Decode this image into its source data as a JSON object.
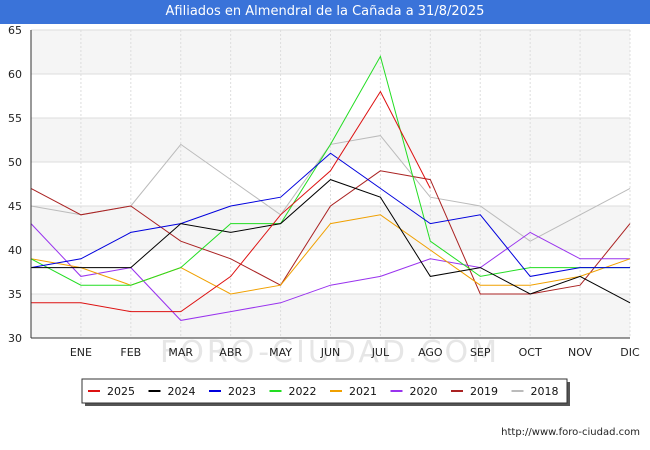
{
  "header": {
    "title": "Afiliados en Almendral de la Cañada a 31/8/2025"
  },
  "source_label": "http://www.foro-ciudad.com",
  "watermark": "FORO-CIUDAD.COM",
  "chart_data": {
    "type": "line",
    "title": "Afiliados en Almendral de la Cañada a 31/8/2025",
    "categories": [
      "",
      "ENE",
      "FEB",
      "MAR",
      "ABR",
      "MAY",
      "JUN",
      "JUL",
      "AGO",
      "SEP",
      "OCT",
      "NOV",
      "DIC"
    ],
    "ylim": [
      30,
      65
    ],
    "yticks": [
      30,
      35,
      40,
      45,
      50,
      55,
      60,
      65
    ],
    "grid": true,
    "legend_position": "bottom",
    "series": [
      {
        "name": "2025",
        "color": "#dd1111",
        "values": [
          34,
          34,
          33,
          33,
          37,
          44,
          49,
          58,
          47,
          null,
          null,
          null,
          null
        ]
      },
      {
        "name": "2024",
        "color": "#000000",
        "values": [
          38,
          38,
          38,
          43,
          42,
          43,
          48,
          46,
          37,
          38,
          35,
          37,
          34
        ]
      },
      {
        "name": "2023",
        "color": "#0000dd",
        "values": [
          38,
          39,
          42,
          43,
          45,
          46,
          51,
          47,
          43,
          44,
          37,
          38,
          38
        ]
      },
      {
        "name": "2022",
        "color": "#22dd22",
        "values": [
          39,
          36,
          36,
          38,
          43,
          43,
          52,
          62,
          41,
          37,
          38,
          38,
          38
        ]
      },
      {
        "name": "2021",
        "color": "#f0a000",
        "values": [
          39,
          38,
          36,
          38,
          35,
          36,
          43,
          44,
          40,
          36,
          36,
          37,
          39
        ]
      },
      {
        "name": "2020",
        "color": "#9933ee",
        "values": [
          43,
          37,
          38,
          32,
          33,
          34,
          36,
          37,
          39,
          38,
          42,
          39,
          39
        ]
      },
      {
        "name": "2019",
        "color": "#aa2222",
        "values": [
          47,
          44,
          45,
          41,
          39,
          36,
          45,
          49,
          48,
          35,
          35,
          36,
          43
        ]
      },
      {
        "name": "2018",
        "color": "#bbbbbb",
        "values": [
          45,
          44,
          45,
          52,
          48,
          44,
          52,
          53,
          46,
          45,
          41,
          44,
          47
        ]
      }
    ]
  }
}
